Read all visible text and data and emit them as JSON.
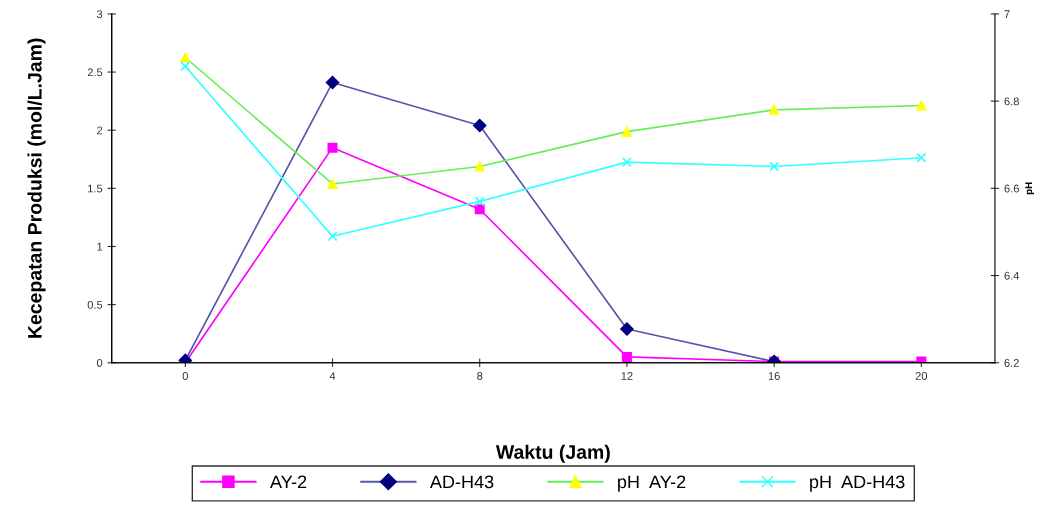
{
  "chart_data": {
    "type": "line",
    "xlabel": "Waktu (Jam)",
    "ylabel": "Kecepatan Produksi (mol/L.Jam)",
    "y2label": "pH",
    "x": [
      0,
      4,
      8,
      12,
      16,
      20
    ],
    "xlim": [
      -2,
      22
    ],
    "xticks": [
      0,
      4,
      8,
      12,
      16,
      20
    ],
    "ylim": [
      0,
      3
    ],
    "yticks": [
      0,
      0.5,
      1,
      1.5,
      2,
      2.5,
      3
    ],
    "y2lim": [
      6.2,
      7
    ],
    "y2ticks": [
      6.2,
      6.4,
      6.6,
      6.8,
      7
    ],
    "grid": false,
    "legend": "bottom",
    "series": [
      {
        "name": "AY-2",
        "color": "#ff00ff",
        "marker": "square",
        "values": [
          0,
          1.85,
          1.32,
          0.05,
          0.01,
          0.01
        ]
      },
      {
        "name": "AD-H43",
        "color": "#5555aa",
        "colors": [
          "#000080",
          "#000080",
          "#000080",
          "#000080",
          "#000080",
          "#000080"
        ],
        "marker": "diamond",
        "values": [
          0.02,
          2.41,
          2.04,
          0.29,
          0.01,
          null
        ]
      },
      {
        "name": "pH  AY-2",
        "color": "#66ee55",
        "colors": [
          "#ffff00",
          "#ffff00",
          "#ffff00",
          "#ffff00",
          "#ffff00",
          "#ffff00"
        ],
        "marker": "triangle",
        "axis": "y2",
        "values": [
          6.9,
          6.61,
          6.65,
          6.73,
          6.78,
          6.79
        ]
      },
      {
        "name": "pH  AD-H43",
        "color": "#33ffff",
        "marker": "cross",
        "axis": "y2",
        "values": [
          6.88,
          6.49,
          6.57,
          6.66,
          6.65,
          6.67
        ]
      }
    ]
  }
}
